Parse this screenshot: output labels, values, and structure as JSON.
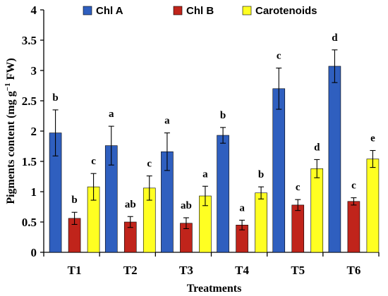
{
  "chart_data": {
    "type": "bar",
    "xlabel": "Treatments",
    "ylabel_main": "Pigments content (mg g",
    "ylabel_sup": "−1",
    "ylabel_end": " FW)",
    "ylim": [
      0,
      4
    ],
    "yticks": [
      "0",
      "0.5",
      "1",
      "1.5",
      "2",
      "2.5",
      "3",
      "3.5",
      "4"
    ],
    "yticks_values": [
      0,
      0.5,
      1,
      1.5,
      2,
      2.5,
      3,
      3.5,
      4
    ],
    "grid": false,
    "legend_position": "top",
    "categories": [
      "T1",
      "T2",
      "T3",
      "T4",
      "T5",
      "T6"
    ],
    "series": [
      {
        "name": "Chl A",
        "color": "#2f5fbf",
        "values": [
          1.97,
          1.76,
          1.66,
          1.93,
          2.7,
          3.07
        ],
        "errors": [
          0.38,
          0.32,
          0.31,
          0.13,
          0.34,
          0.27
        ],
        "letters": [
          "b",
          "a",
          "a",
          "b",
          "c",
          "d"
        ]
      },
      {
        "name": "Chl B",
        "color": "#c0241b",
        "values": [
          0.56,
          0.5,
          0.48,
          0.45,
          0.78,
          0.84
        ],
        "errors": [
          0.1,
          0.09,
          0.09,
          0.08,
          0.09,
          0.06
        ],
        "letters": [
          "b",
          "ab",
          "ab",
          "a",
          "c",
          "c"
        ]
      },
      {
        "name": "Carotenoids",
        "color": "#ffff22",
        "values": [
          1.08,
          1.06,
          0.93,
          0.98,
          1.38,
          1.54
        ],
        "errors": [
          0.22,
          0.2,
          0.16,
          0.1,
          0.15,
          0.14
        ],
        "letters": [
          "c",
          "c",
          "a",
          "b",
          "d",
          "e"
        ]
      }
    ]
  }
}
